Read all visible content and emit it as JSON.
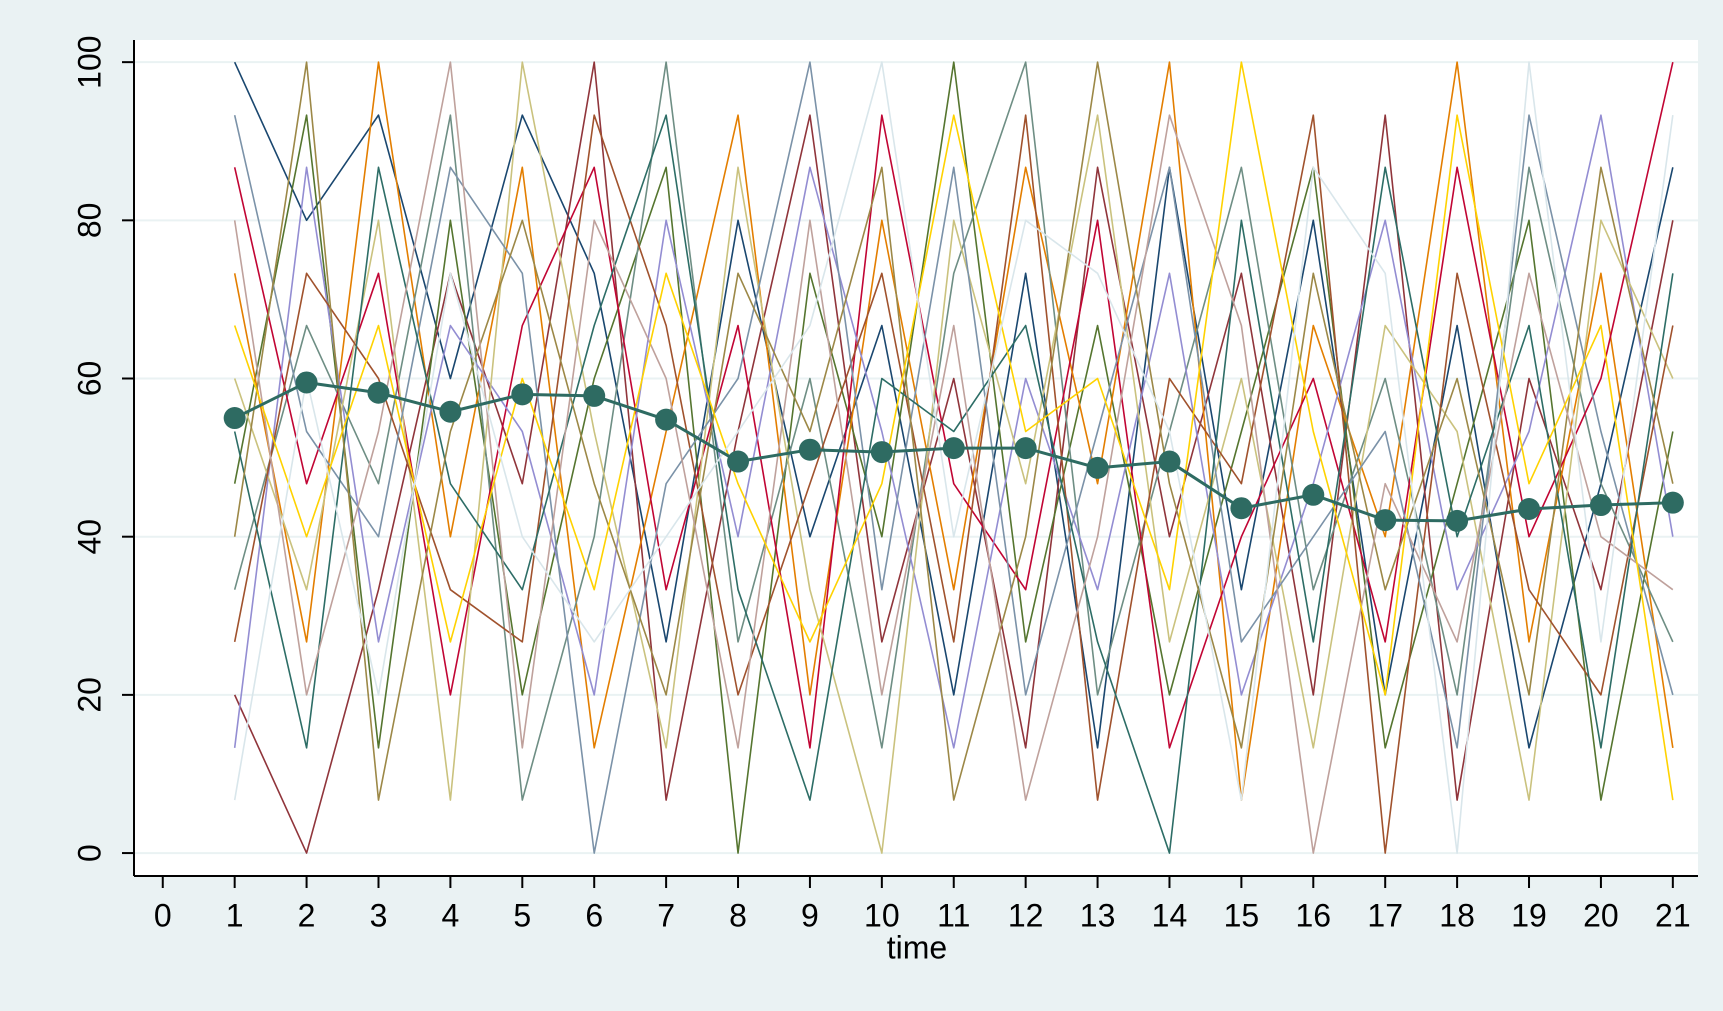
{
  "chart_data": {
    "type": "line",
    "x": [
      1,
      2,
      3,
      4,
      5,
      6,
      7,
      8,
      9,
      10,
      11,
      12,
      13,
      14,
      15,
      16,
      17,
      18,
      19,
      20,
      21
    ],
    "x_label": "time",
    "xlim": [
      -0.4,
      21.35
    ],
    "xticks": [
      0,
      1,
      2,
      3,
      4,
      5,
      6,
      7,
      8,
      9,
      10,
      11,
      12,
      13,
      14,
      15,
      16,
      17,
      18,
      19,
      20,
      21
    ],
    "ylim": [
      -2.9,
      102.8
    ],
    "yticks": [
      0,
      20,
      40,
      60,
      80,
      100
    ],
    "grid": true,
    "series": [
      {
        "color": "#1a476f",
        "values": [
          100,
          80,
          93.3,
          60,
          93.3,
          73.3,
          26.7,
          80,
          40,
          66.7,
          20,
          73.3,
          13.3,
          86.7,
          33.3,
          80,
          20,
          66.7,
          13.3,
          46.7,
          86.7
        ]
      },
      {
        "color": "#90353b",
        "values": [
          20,
          0,
          33.3,
          73.3,
          46.7,
          100,
          6.7,
          53.3,
          93.3,
          26.7,
          60,
          13.3,
          86.7,
          40,
          73.3,
          20,
          93.3,
          6.7,
          60,
          33.3,
          80
        ]
      },
      {
        "color": "#55752f",
        "values": [
          46.7,
          93.3,
          13.3,
          80,
          20,
          60,
          86.7,
          0,
          73.3,
          40,
          100,
          26.7,
          66.7,
          20,
          53.3,
          86.7,
          13.3,
          46.7,
          80,
          6.7,
          53.3
        ]
      },
      {
        "color": "#e37e00",
        "values": [
          73.3,
          26.7,
          100,
          40,
          86.7,
          13.3,
          53.3,
          93.3,
          20,
          80,
          33.3,
          86.7,
          46.7,
          100,
          6.7,
          66.7,
          40,
          100,
          26.7,
          73.3,
          13.3
        ]
      },
      {
        "color": "#6e8e84",
        "values": [
          33.3,
          66.7,
          46.7,
          93.3,
          6.7,
          40,
          100,
          26.7,
          60,
          13.3,
          73.3,
          100,
          20,
          53.3,
          86.7,
          33.3,
          60,
          20,
          86.7,
          46.7,
          26.7
        ]
      },
      {
        "color": "#c10534",
        "values": [
          86.7,
          46.7,
          73.3,
          20,
          66.7,
          86.7,
          33.3,
          66.7,
          13.3,
          93.3,
          46.7,
          33.3,
          80,
          13.3,
          40,
          60,
          26.7,
          86.7,
          40,
          60,
          100
        ]
      },
      {
        "color": "#938dd2",
        "values": [
          13.3,
          86.7,
          26.7,
          66.7,
          53.3,
          20,
          80,
          40,
          86.7,
          53.3,
          13.3,
          60,
          33.3,
          73.3,
          20,
          46.7,
          80,
          33.3,
          53.3,
          93.3,
          40
        ]
      },
      {
        "color": "#cac27e",
        "values": [
          60,
          33.3,
          80,
          6.7,
          100,
          53.3,
          13.3,
          86.7,
          33.3,
          0,
          80,
          46.7,
          93.3,
          26.7,
          60,
          13.3,
          66.7,
          53.3,
          6.7,
          80,
          60
        ]
      },
      {
        "color": "#a0522d",
        "values": [
          26.7,
          73.3,
          60,
          33.3,
          26.7,
          93.3,
          66.7,
          20,
          46.7,
          73.3,
          26.7,
          93.3,
          6.7,
          60,
          46.7,
          93.3,
          0,
          73.3,
          33.3,
          20,
          66.7
        ]
      },
      {
        "color": "#7b92a8",
        "values": [
          93.3,
          53.3,
          40,
          86.7,
          73.3,
          0,
          46.7,
          60,
          100,
          33.3,
          86.7,
          20,
          53.3,
          86.7,
          26.7,
          40,
          53.3,
          13.3,
          93.3,
          53.3,
          20
        ]
      },
      {
        "color": "#2d6d66",
        "values": [
          53.3,
          13.3,
          86.7,
          46.7,
          33.3,
          66.7,
          93.3,
          33.3,
          6.7,
          60,
          53.3,
          66.7,
          26.7,
          0,
          80,
          26.7,
          86.7,
          40,
          66.7,
          13.3,
          73.3
        ]
      },
      {
        "color": "#9c8847",
        "values": [
          40,
          100,
          6.7,
          53.3,
          80,
          46.7,
          20,
          73.3,
          53.3,
          86.7,
          6.7,
          40,
          100,
          46.7,
          13.3,
          73.3,
          33.3,
          60,
          20,
          86.7,
          46.7
        ]
      },
      {
        "color": "#bfa19c",
        "values": [
          80,
          20,
          53.3,
          100,
          13.3,
          80,
          60,
          13.3,
          80,
          20,
          66.7,
          6.7,
          40,
          93.3,
          66.7,
          0,
          46.7,
          26.7,
          73.3,
          40,
          33.3
        ]
      },
      {
        "color": "#ffd200",
        "values": [
          66.7,
          40,
          66.7,
          26.7,
          60,
          33.3,
          73.3,
          46.7,
          26.7,
          46.7,
          93.3,
          53.3,
          60,
          33.3,
          100,
          53.3,
          20,
          93.3,
          46.7,
          66.7,
          6.7
        ]
      },
      {
        "color": "#d9e6eb",
        "values": [
          6.7,
          60,
          20,
          73.3,
          40,
          26.7,
          40,
          53.3,
          66.7,
          100,
          40,
          80,
          73.3,
          53.3,
          6.7,
          86.7,
          73.3,
          0,
          100,
          26.7,
          93.3
        ]
      },
      {
        "color": "#2e6b62",
        "markers": true,
        "values": [
          55,
          59.5,
          58.2,
          55.8,
          58,
          57.8,
          54.8,
          49.5,
          51,
          50.7,
          51.2,
          51.2,
          48.7,
          49.5,
          43.6,
          45.3,
          42.1,
          42,
          43.5,
          44,
          44.3
        ]
      }
    ]
  }
}
